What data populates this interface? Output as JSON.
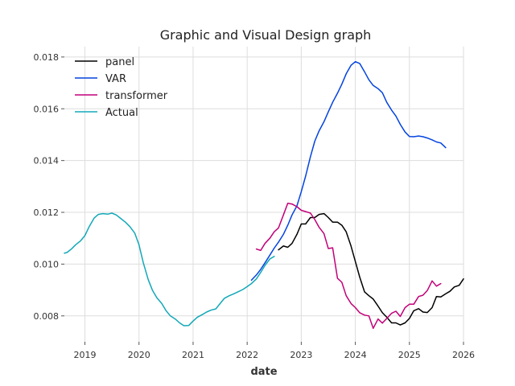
{
  "chart_data": {
    "type": "line",
    "title": "Graphic and Visual Design graph",
    "xlabel": "date",
    "ylabel": "",
    "xlim": [
      2018.62,
      2026.0
    ],
    "ylim": [
      0.007,
      0.0184
    ],
    "x_ticks": [
      2019,
      2020,
      2021,
      2022,
      2023,
      2024,
      2025,
      2026
    ],
    "x_tick_labels": [
      "2019",
      "2020",
      "2021",
      "2022",
      "2023",
      "2024",
      "2025",
      "2026"
    ],
    "y_ticks": [
      0.008,
      0.01,
      0.012,
      0.014,
      0.016,
      0.018
    ],
    "y_tick_labels": [
      "0.008",
      "0.010",
      "0.012",
      "0.014",
      "0.016",
      "0.018"
    ],
    "grid": true,
    "legend_position": "top-left",
    "series": [
      {
        "name": "panel",
        "color": "#000000",
        "points": [
          [
            2022.58,
            0.01055
          ],
          [
            2022.67,
            0.0107
          ],
          [
            2022.75,
            0.01065
          ],
          [
            2022.83,
            0.0108
          ],
          [
            2022.92,
            0.01115
          ],
          [
            2023.0,
            0.01155
          ],
          [
            2023.08,
            0.01155
          ],
          [
            2023.17,
            0.0118
          ],
          [
            2023.25,
            0.0118
          ],
          [
            2023.33,
            0.01192
          ],
          [
            2023.42,
            0.01195
          ],
          [
            2023.5,
            0.0118
          ],
          [
            2023.58,
            0.01162
          ],
          [
            2023.67,
            0.01162
          ],
          [
            2023.75,
            0.0115
          ],
          [
            2023.83,
            0.01125
          ],
          [
            2023.92,
            0.0107
          ],
          [
            2024.0,
            0.0101
          ],
          [
            2024.08,
            0.0095
          ],
          [
            2024.17,
            0.00893
          ],
          [
            2024.25,
            0.00878
          ],
          [
            2024.33,
            0.00865
          ],
          [
            2024.42,
            0.00838
          ],
          [
            2024.5,
            0.00812
          ],
          [
            2024.58,
            0.00795
          ],
          [
            2024.67,
            0.00773
          ],
          [
            2024.75,
            0.00773
          ],
          [
            2024.83,
            0.00765
          ],
          [
            2024.92,
            0.00773
          ],
          [
            2025.0,
            0.0079
          ],
          [
            2025.08,
            0.0082
          ],
          [
            2025.17,
            0.00828
          ],
          [
            2025.25,
            0.00815
          ],
          [
            2025.33,
            0.00813
          ],
          [
            2025.42,
            0.00832
          ],
          [
            2025.5,
            0.00875
          ],
          [
            2025.58,
            0.00873
          ],
          [
            2025.67,
            0.00885
          ],
          [
            2025.75,
            0.00895
          ],
          [
            2025.83,
            0.00912
          ],
          [
            2025.92,
            0.00918
          ],
          [
            2026.0,
            0.00943
          ]
        ]
      },
      {
        "name": "VAR",
        "color": "#0343df",
        "points": [
          [
            2022.08,
            0.00938
          ],
          [
            2022.17,
            0.00958
          ],
          [
            2022.25,
            0.0098
          ],
          [
            2022.33,
            0.01005
          ],
          [
            2022.42,
            0.01035
          ],
          [
            2022.5,
            0.01062
          ],
          [
            2022.58,
            0.01085
          ],
          [
            2022.67,
            0.01115
          ],
          [
            2022.75,
            0.0115
          ],
          [
            2022.83,
            0.0119
          ],
          [
            2022.92,
            0.01225
          ],
          [
            2023.0,
            0.0128
          ],
          [
            2023.08,
            0.0134
          ],
          [
            2023.17,
            0.01415
          ],
          [
            2023.25,
            0.01475
          ],
          [
            2023.33,
            0.01515
          ],
          [
            2023.42,
            0.0155
          ],
          [
            2023.5,
            0.01588
          ],
          [
            2023.58,
            0.01625
          ],
          [
            2023.67,
            0.0166
          ],
          [
            2023.75,
            0.01695
          ],
          [
            2023.83,
            0.01735
          ],
          [
            2023.92,
            0.01768
          ],
          [
            2024.0,
            0.01782
          ],
          [
            2024.08,
            0.01775
          ],
          [
            2024.17,
            0.01743
          ],
          [
            2024.25,
            0.01712
          ],
          [
            2024.33,
            0.0169
          ],
          [
            2024.42,
            0.01678
          ],
          [
            2024.5,
            0.01662
          ],
          [
            2024.58,
            0.01625
          ],
          [
            2024.67,
            0.01595
          ],
          [
            2024.75,
            0.01572
          ],
          [
            2024.83,
            0.0154
          ],
          [
            2024.92,
            0.0151
          ],
          [
            2025.0,
            0.01493
          ],
          [
            2025.08,
            0.01492
          ],
          [
            2025.17,
            0.01495
          ],
          [
            2025.25,
            0.01492
          ],
          [
            2025.33,
            0.01487
          ],
          [
            2025.42,
            0.0148
          ],
          [
            2025.5,
            0.01472
          ],
          [
            2025.58,
            0.01468
          ],
          [
            2025.67,
            0.0145
          ]
        ]
      },
      {
        "name": "transformer",
        "color": "#c20078",
        "points": [
          [
            2022.17,
            0.01058
          ],
          [
            2022.25,
            0.01053
          ],
          [
            2022.33,
            0.0108
          ],
          [
            2022.42,
            0.011
          ],
          [
            2022.5,
            0.01125
          ],
          [
            2022.58,
            0.0114
          ],
          [
            2022.67,
            0.0119
          ],
          [
            2022.75,
            0.01235
          ],
          [
            2022.83,
            0.01232
          ],
          [
            2022.92,
            0.01222
          ],
          [
            2023.0,
            0.01208
          ],
          [
            2023.08,
            0.01203
          ],
          [
            2023.17,
            0.01197
          ],
          [
            2023.25,
            0.01172
          ],
          [
            2023.33,
            0.01142
          ],
          [
            2023.42,
            0.01118
          ],
          [
            2023.5,
            0.0106
          ],
          [
            2023.58,
            0.01063
          ],
          [
            2023.67,
            0.00945
          ],
          [
            2023.75,
            0.0093
          ],
          [
            2023.83,
            0.00878
          ],
          [
            2023.92,
            0.00848
          ],
          [
            2024.0,
            0.00832
          ],
          [
            2024.08,
            0.00812
          ],
          [
            2024.17,
            0.00803
          ],
          [
            2024.25,
            0.008
          ],
          [
            2024.33,
            0.00752
          ],
          [
            2024.42,
            0.00788
          ],
          [
            2024.5,
            0.00772
          ],
          [
            2024.58,
            0.0079
          ],
          [
            2024.67,
            0.0081
          ],
          [
            2024.75,
            0.00818
          ],
          [
            2024.83,
            0.00798
          ],
          [
            2024.92,
            0.00832
          ],
          [
            2025.0,
            0.00845
          ],
          [
            2025.08,
            0.00845
          ],
          [
            2025.17,
            0.00875
          ],
          [
            2025.25,
            0.0088
          ],
          [
            2025.33,
            0.00898
          ],
          [
            2025.42,
            0.00935
          ],
          [
            2025.5,
            0.00915
          ],
          [
            2025.58,
            0.00925
          ]
        ]
      },
      {
        "name": "Actual",
        "color": "#13a8b8",
        "points": [
          [
            2018.62,
            0.01042
          ],
          [
            2018.67,
            0.01045
          ],
          [
            2018.75,
            0.01058
          ],
          [
            2018.83,
            0.01075
          ],
          [
            2018.92,
            0.0109
          ],
          [
            2019.0,
            0.0111
          ],
          [
            2019.08,
            0.01145
          ],
          [
            2019.17,
            0.01178
          ],
          [
            2019.25,
            0.01192
          ],
          [
            2019.33,
            0.01195
          ],
          [
            2019.42,
            0.01193
          ],
          [
            2019.5,
            0.01197
          ],
          [
            2019.58,
            0.0119
          ],
          [
            2019.67,
            0.01175
          ],
          [
            2019.75,
            0.01162
          ],
          [
            2019.83,
            0.01145
          ],
          [
            2019.92,
            0.0112
          ],
          [
            2020.0,
            0.01075
          ],
          [
            2020.08,
            0.01005
          ],
          [
            2020.17,
            0.0094
          ],
          [
            2020.25,
            0.00898
          ],
          [
            2020.33,
            0.0087
          ],
          [
            2020.42,
            0.00848
          ],
          [
            2020.5,
            0.0082
          ],
          [
            2020.58,
            0.008
          ],
          [
            2020.67,
            0.00788
          ],
          [
            2020.75,
            0.00773
          ],
          [
            2020.83,
            0.00762
          ],
          [
            2020.92,
            0.00763
          ],
          [
            2021.0,
            0.0078
          ],
          [
            2021.08,
            0.00795
          ],
          [
            2021.17,
            0.00805
          ],
          [
            2021.25,
            0.00815
          ],
          [
            2021.33,
            0.00822
          ],
          [
            2021.42,
            0.00827
          ],
          [
            2021.5,
            0.00848
          ],
          [
            2021.58,
            0.00868
          ],
          [
            2021.67,
            0.00878
          ],
          [
            2021.75,
            0.00885
          ],
          [
            2021.83,
            0.00893
          ],
          [
            2021.92,
            0.00902
          ],
          [
            2022.0,
            0.00913
          ],
          [
            2022.08,
            0.00925
          ],
          [
            2022.17,
            0.00943
          ],
          [
            2022.25,
            0.00968
          ],
          [
            2022.33,
            0.00995
          ],
          [
            2022.42,
            0.0102
          ],
          [
            2022.5,
            0.0103
          ]
        ]
      }
    ]
  }
}
